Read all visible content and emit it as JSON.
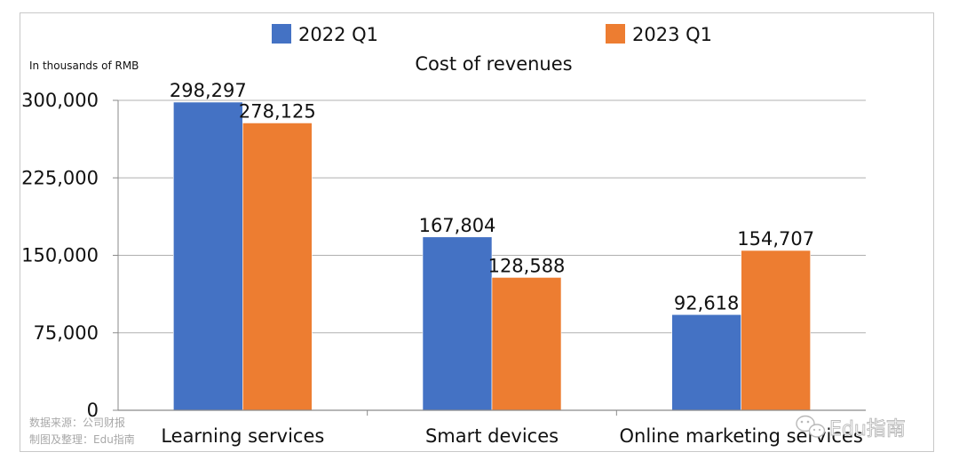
{
  "chart_data": {
    "type": "bar",
    "title": "Cost of revenues",
    "unit_note": "In thousands of RMB",
    "categories": [
      "Learning services",
      "Smart devices",
      "Online marketing services"
    ],
    "series": [
      {
        "name": "2022 Q1",
        "color": "#4472C4",
        "values": [
          298297,
          167804,
          92618
        ],
        "labels": [
          "298,297",
          "167,804",
          "92,618"
        ]
      },
      {
        "name": "2023 Q1",
        "color": "#ED7D31",
        "values": [
          278125,
          128588,
          154707
        ],
        "labels": [
          "278,125",
          "128,588",
          "154,707"
        ]
      }
    ],
    "yticks": [
      "0",
      "75,000",
      "150,000",
      "225,000",
      "300,000"
    ],
    "ylim": [
      0,
      300000
    ],
    "grid": true,
    "legend_position": "top"
  },
  "source": {
    "line1": "数据来源：公司财报",
    "line2": "制图及整理：Edu指南"
  },
  "watermark": {
    "text": "Edu指南",
    "icon": "wechat-icon"
  }
}
